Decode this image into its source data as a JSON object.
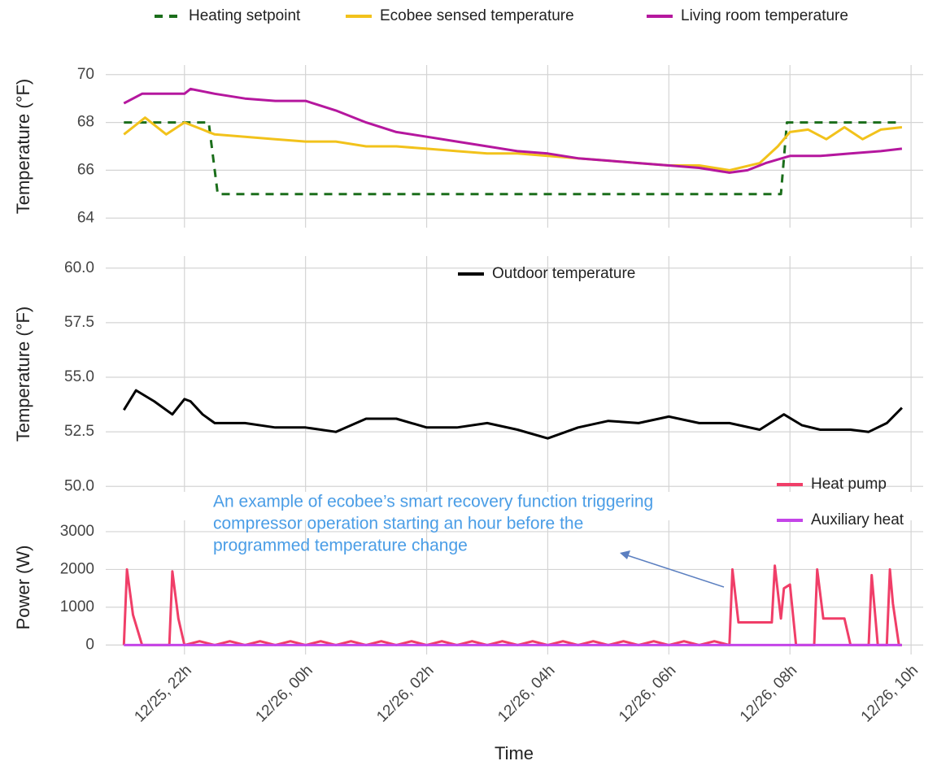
{
  "chart_data": [
    {
      "type": "line",
      "y_label": "Temperature (°F)",
      "xlim": [
        20.7,
        34.2
      ],
      "ylim": [
        63.6,
        70.4
      ],
      "yticks": [
        64,
        66,
        68,
        70
      ],
      "grid": true,
      "legend": "top",
      "series": [
        {
          "name": "Heating setpoint",
          "color": "#1b6e1b",
          "line_style": "dashed",
          "x": [
            21,
            22.4,
            22.55,
            31.85,
            31.95,
            33.85
          ],
          "values": [
            68,
            68,
            65,
            65,
            68,
            68
          ]
        },
        {
          "name": "Ecobee sensed temperature",
          "color": "#f2c21b",
          "line_style": "solid",
          "x": [
            21,
            21.35,
            21.7,
            22,
            22.3,
            22.5,
            23,
            23.5,
            24,
            24.5,
            25,
            25.5,
            26,
            26.5,
            27,
            27.5,
            28,
            28.5,
            29,
            29.5,
            30,
            30.5,
            31,
            31.5,
            31.8,
            32,
            32.3,
            32.6,
            32.9,
            33.2,
            33.5,
            33.85
          ],
          "values": [
            67.5,
            68.2,
            67.5,
            68.0,
            67.7,
            67.5,
            67.4,
            67.3,
            67.2,
            67.2,
            67.0,
            67.0,
            66.9,
            66.8,
            66.7,
            66.7,
            66.6,
            66.5,
            66.4,
            66.3,
            66.2,
            66.2,
            66.0,
            66.3,
            67.0,
            67.6,
            67.7,
            67.3,
            67.8,
            67.3,
            67.7,
            67.8
          ]
        },
        {
          "name": "Living room temperature",
          "color": "#b5179e",
          "line_style": "solid",
          "x": [
            21,
            21.3,
            22,
            22.1,
            22.5,
            23,
            23.5,
            24,
            24.5,
            25,
            25.5,
            26,
            26.5,
            27,
            27.5,
            28,
            28.5,
            29,
            29.5,
            30,
            30.5,
            31,
            31.3,
            31.6,
            32,
            32.5,
            33,
            33.5,
            33.85
          ],
          "values": [
            68.8,
            69.2,
            69.2,
            69.4,
            69.2,
            69.0,
            68.9,
            68.9,
            68.5,
            68.0,
            67.6,
            67.4,
            67.2,
            67.0,
            66.8,
            66.7,
            66.5,
            66.4,
            66.3,
            66.2,
            66.1,
            65.9,
            66.0,
            66.3,
            66.6,
            66.6,
            66.7,
            66.8,
            66.9
          ]
        }
      ]
    },
    {
      "type": "line",
      "y_label": "Temperature (°F)",
      "xlim": [
        20.7,
        34.2
      ],
      "ylim": [
        49.75,
        60.55
      ],
      "yticks": [
        {
          "value": 50,
          "label": "50.0"
        },
        {
          "value": 52.5,
          "label": "52.5"
        },
        {
          "value": 55,
          "label": "55.0"
        },
        {
          "value": 57.5,
          "label": "57.5"
        },
        {
          "value": 60,
          "label": "60.0"
        }
      ],
      "grid": true,
      "legend": "top",
      "series": [
        {
          "name": "Outdoor temperature",
          "color": "#000000",
          "line_style": "solid",
          "x": [
            21,
            21.2,
            21.5,
            21.8,
            22,
            22.1,
            22.3,
            22.5,
            23,
            23.5,
            24,
            24.5,
            25,
            25.5,
            26,
            26.5,
            27,
            27.5,
            28,
            28.5,
            29,
            29.5,
            30,
            30.5,
            31,
            31.5,
            31.9,
            32.2,
            32.5,
            33,
            33.3,
            33.6,
            33.85
          ],
          "values": [
            53.5,
            54.4,
            53.9,
            53.3,
            54.0,
            53.9,
            53.3,
            52.9,
            52.9,
            52.7,
            52.7,
            52.5,
            53.1,
            53.1,
            52.7,
            52.7,
            52.9,
            52.6,
            52.2,
            52.7,
            53.0,
            52.9,
            53.2,
            52.9,
            52.9,
            52.6,
            53.3,
            52.8,
            52.6,
            52.6,
            52.5,
            52.9,
            53.6
          ]
        }
      ]
    },
    {
      "type": "line",
      "y_label": "Power (W)",
      "x_label": "Time",
      "xlim": [
        20.7,
        34.2
      ],
      "ylim": [
        -250,
        3300
      ],
      "yticks": [
        0,
        1000,
        2000,
        3000
      ],
      "xticks": [
        {
          "value": 22,
          "label": "12/25, 22h"
        },
        {
          "value": 24,
          "label": "12/26, 00h"
        },
        {
          "value": 26,
          "label": "12/26, 02h"
        },
        {
          "value": 28,
          "label": "12/26, 04h"
        },
        {
          "value": 30,
          "label": "12/26, 06h"
        },
        {
          "value": 32,
          "label": "12/26, 08h"
        },
        {
          "value": 34,
          "label": "12/26, 10h"
        }
      ],
      "grid": true,
      "legend": "right",
      "annotation": [
        "An example of ecobee’s smart recovery function triggering",
        "compressor operation starting an hour before the",
        "programmed temperature change"
      ],
      "series": [
        {
          "name": "Heat pump",
          "color": "#f03e68",
          "line_style": "solid",
          "x": [
            21.0,
            21.05,
            21.15,
            21.3,
            21.75,
            21.8,
            21.9,
            22.0,
            22.25,
            22.5,
            22.75,
            23,
            23.25,
            23.5,
            23.75,
            24,
            24.25,
            24.5,
            24.75,
            25,
            25.25,
            25.5,
            25.75,
            26,
            26.25,
            26.5,
            26.75,
            27,
            27.25,
            27.5,
            27.75,
            28,
            28.25,
            28.5,
            28.75,
            29,
            29.25,
            29.5,
            29.75,
            30,
            30.25,
            30.5,
            30.75,
            31,
            31.05,
            31.15,
            31.7,
            31.75,
            31.85,
            31.9,
            32.0,
            32.1,
            32.4,
            32.45,
            32.55,
            32.9,
            33.0,
            33.3,
            33.35,
            33.45,
            33.6,
            33.65,
            33.7,
            33.8,
            33.85
          ],
          "values": [
            0,
            2000,
            800,
            0,
            0,
            1950,
            700,
            0,
            100,
            0,
            100,
            0,
            100,
            0,
            100,
            0,
            100,
            0,
            100,
            0,
            100,
            0,
            100,
            0,
            100,
            0,
            100,
            0,
            100,
            0,
            100,
            0,
            100,
            0,
            100,
            0,
            100,
            0,
            100,
            0,
            100,
            0,
            100,
            0,
            2000,
            600,
            600,
            2100,
            700,
            1500,
            1600,
            0,
            0,
            2000,
            700,
            700,
            0,
            0,
            1850,
            0,
            0,
            2000,
            1100,
            0,
            0
          ]
        },
        {
          "name": "Auxiliary heat",
          "color": "#c445e8",
          "line_style": "solid",
          "x": [
            21,
            33.85
          ],
          "values": [
            0,
            0
          ]
        }
      ]
    }
  ]
}
